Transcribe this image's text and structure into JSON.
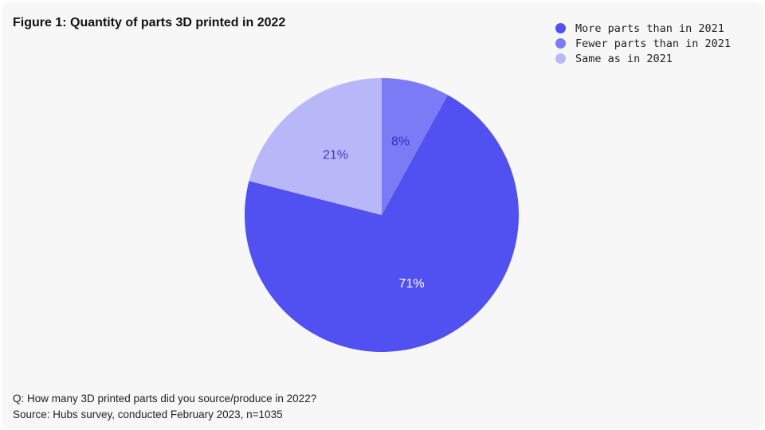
{
  "chart_data": {
    "type": "pie",
    "title": "Figure 1: Quantity of parts 3D printed in 2022",
    "slices": [
      {
        "label": "Fewer parts than in 2021",
        "value": 8,
        "display": "8%",
        "color": "#7b7cf5",
        "text_color": "#2f2fc8"
      },
      {
        "label": "More parts than in 2021",
        "value": 71,
        "display": "71%",
        "color": "#5051f0",
        "text_color": "#ffffff"
      },
      {
        "label": "Same as in 2021",
        "value": 21,
        "display": "21%",
        "color": "#b8b8f8",
        "text_color": "#3b3bc6"
      }
    ],
    "legend": [
      {
        "label": "More parts than in 2021",
        "color": "#5051f0"
      },
      {
        "label": "Fewer parts than in 2021",
        "color": "#7b7cf5"
      },
      {
        "label": "Same as in 2021",
        "color": "#b8b8f8"
      }
    ],
    "legend_position": "top-right"
  },
  "footnote": {
    "question": "Q: How many 3D printed parts did you source/produce in 2022?",
    "source": "Source: Hubs survey, conducted February 2023, n=1035"
  }
}
